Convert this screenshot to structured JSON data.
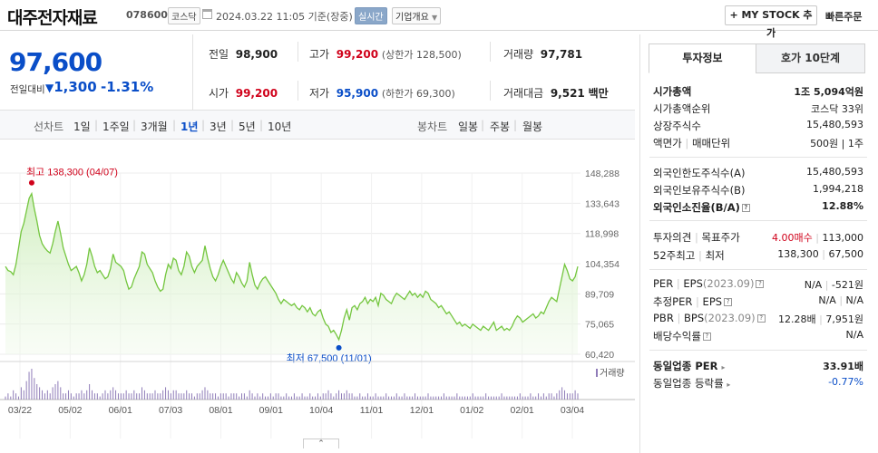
{
  "header": {
    "company_name": "대주전자재료",
    "code": "078600",
    "market": "코스닥",
    "datetime": "2024.03.22 11:05 기준(장중)",
    "realtime_badge": "실시간",
    "overview_dropdown": "기업개요",
    "my_stock_button": "+ MY STOCK 추가",
    "fast_order": "빠른주문"
  },
  "price": {
    "current": "97,600",
    "prev_label": "전일대비",
    "change": "1,300",
    "change_pct": "-1.31%",
    "direction": "down"
  },
  "summary": {
    "prev_close_label": "전일",
    "prev_close": "98,900",
    "high_label": "고가",
    "high": "99,200",
    "upper_limit": "(상한가 128,500)",
    "volume_label": "거래량",
    "volume": "97,781",
    "open_label": "시가",
    "open": "99,200",
    "low_label": "저가",
    "low": "95,900",
    "lower_limit": "(하한가 69,300)",
    "amount_label": "거래대금",
    "amount": "9,521",
    "amount_unit": "백만"
  },
  "period_bar": {
    "line_label": "선차트",
    "periods": [
      "1일",
      "1주일",
      "3개월",
      "1년",
      "3년",
      "5년",
      "10년"
    ],
    "selected": "1년",
    "candle_label": "봉차트",
    "candles": [
      "일봉",
      "주봉",
      "월봉"
    ]
  },
  "chart_data": {
    "type": "area",
    "y_ticks": [
      "148,288",
      "133,643",
      "118,998",
      "104,354",
      "89,709",
      "75,065",
      "60,420"
    ],
    "ylim": [
      60420,
      148288
    ],
    "x_ticks": [
      "03/22",
      "05/02",
      "06/01",
      "07/03",
      "08/01",
      "09/01",
      "10/04",
      "11/01",
      "12/01",
      "01/02",
      "02/01",
      "03/04"
    ],
    "high_annotation": "최고 138,300 (04/07)",
    "low_annotation": "최저 67,500 (11/01)",
    "volume_label": "거래량",
    "price_series": [
      103000,
      101000,
      100500,
      99000,
      104000,
      112000,
      120000,
      124000,
      130000,
      136000,
      138300,
      131000,
      125000,
      118000,
      114000,
      112000,
      110500,
      109500,
      114000,
      120000,
      125000,
      119000,
      112000,
      108000,
      104000,
      101000,
      102000,
      103000,
      100000,
      96000,
      99000,
      104000,
      112000,
      108000,
      103000,
      100000,
      101000,
      99000,
      97000,
      98000,
      102000,
      109000,
      105000,
      104000,
      103000,
      101000,
      96000,
      92000,
      93000,
      97000,
      100000,
      103000,
      110000,
      109000,
      104000,
      102000,
      100000,
      96000,
      93000,
      91000,
      92000,
      99000,
      104000,
      102000,
      107000,
      106000,
      101000,
      99000,
      103000,
      110000,
      108000,
      103000,
      100000,
      103000,
      104500,
      106000,
      113000,
      107000,
      102000,
      98000,
      96000,
      99000,
      103000,
      106000,
      103000,
      100000,
      97000,
      95000,
      100000,
      98000,
      95000,
      93000,
      96000,
      105000,
      99000,
      94000,
      92000,
      95000,
      97000,
      98000,
      96000,
      94000,
      92000,
      90000,
      87000,
      85000,
      87000,
      86000,
      85000,
      84000,
      85000,
      83000,
      82000,
      84000,
      83000,
      81000,
      83000,
      80000,
      79000,
      81000,
      82000,
      78000,
      75000,
      74000,
      71000,
      72000,
      70000,
      67500,
      72000,
      78000,
      82000,
      77000,
      83000,
      84000,
      82000,
      85000,
      86000,
      88000,
      85000,
      87000,
      86000,
      88000,
      84000,
      90000,
      89000,
      87000,
      86000,
      85000,
      88000,
      90000,
      89000,
      88000,
      87000,
      89000,
      91000,
      89000,
      90000,
      88000,
      89500,
      88000,
      91000,
      90000,
      87000,
      86000,
      85000,
      83000,
      84000,
      82000,
      80000,
      81000,
      79000,
      77000,
      75000,
      76000,
      74000,
      75000,
      74000,
      73000,
      75000,
      74000,
      73000,
      72000,
      74000,
      73000,
      72000,
      74000,
      76000,
      72000,
      73000,
      74000,
      72000,
      73000,
      72000,
      74000,
      77000,
      79000,
      78000,
      76000,
      77000,
      78000,
      79000,
      80000,
      78000,
      79000,
      81000,
      80000,
      83000,
      86000,
      88000,
      87000,
      86000,
      92000,
      98000,
      104000,
      101000,
      97000,
      96000,
      98000,
      103000
    ],
    "volume_series": [
      1,
      2,
      1,
      3,
      2,
      1,
      4,
      3,
      6,
      9,
      10,
      7,
      5,
      4,
      3,
      2,
      3,
      2,
      4,
      5,
      6,
      4,
      2,
      2,
      3,
      2,
      1,
      2,
      2,
      3,
      2,
      3,
      5,
      3,
      2,
      2,
      1,
      2,
      3,
      2,
      3,
      4,
      3,
      2,
      2,
      2,
      3,
      2,
      2,
      3,
      2,
      2,
      4,
      3,
      2,
      2,
      2,
      3,
      2,
      2,
      3,
      4,
      3,
      2,
      3,
      3,
      2,
      2,
      2,
      3,
      2,
      2,
      1,
      2,
      2,
      3,
      4,
      3,
      2,
      2,
      2,
      1,
      2,
      2,
      2,
      1,
      2,
      2,
      2,
      1,
      2,
      2,
      1,
      3,
      2,
      1,
      2,
      1,
      2,
      1,
      1,
      2,
      1,
      2,
      2,
      1,
      1,
      2,
      1,
      1,
      2,
      1,
      1,
      2,
      1,
      1,
      2,
      1,
      1,
      2,
      1,
      2,
      2,
      3,
      2,
      1,
      2,
      3,
      2,
      2,
      3,
      2,
      2,
      1,
      1,
      2,
      1,
      1,
      2,
      1,
      1,
      2,
      1,
      1,
      1,
      2,
      1,
      1,
      1,
      2,
      1,
      1,
      2,
      1,
      1,
      1,
      2,
      1,
      1,
      1,
      1,
      2,
      1,
      1,
      1,
      1,
      1,
      2,
      1,
      1,
      1,
      1,
      2,
      1,
      1,
      1,
      1,
      1,
      2,
      1,
      1,
      1,
      1,
      2,
      1,
      1,
      1,
      1,
      1,
      2,
      1,
      1,
      1,
      1,
      1,
      1,
      2,
      1,
      1,
      1,
      2,
      1,
      1,
      2,
      1,
      2,
      1,
      2,
      2,
      1,
      2,
      3,
      4,
      3,
      2,
      2,
      2,
      3,
      2
    ]
  },
  "right_panel": {
    "tabs": [
      "투자정보",
      "호가 10단계"
    ],
    "market_cap_label": "시가총액",
    "market_cap": "1조 5,094억원",
    "market_cap_rank_label": "시가총액순위",
    "market_cap_rank": "코스닥 33위",
    "shares_label": "상장주식수",
    "shares": "15,480,593",
    "par_label": "액면가",
    "unit_label": "매매단위",
    "par_unit": "500원 | 1주",
    "foreign_limit_label": "외국인한도주식수(A)",
    "foreign_limit": "15,480,593",
    "foreign_hold_label": "외국인보유주식수(B)",
    "foreign_hold": "1,994,218",
    "foreign_ratio_label": "외국인소진율(B/A)",
    "foreign_ratio": "12.88%",
    "opinion_label": "투자의견",
    "target_label": "목표주가",
    "opinion": "4.00매수",
    "target": "113,000",
    "w52_label": "52주최고",
    "w52_low_label": "최저",
    "w52_high": "138,300",
    "w52_low": "67,500",
    "per_label": "PER",
    "eps_label": "EPS",
    "eps_year": "(2023.09)",
    "per": "N/A",
    "eps": "-521원",
    "est_per_label": "추정PER",
    "est_eps_label": "EPS",
    "est_per": "N/A",
    "est_eps": "N/A",
    "pbr_label": "PBR",
    "bps_label": "BPS",
    "pbr": "12.28배",
    "bps": "7,951원",
    "dividend_label": "배당수익률",
    "dividend": "N/A",
    "industry_per_label": "동일업종 PER",
    "industry_per": "33.91배",
    "industry_rate_label": "동일업종 등락률",
    "industry_rate": "-0.77%"
  }
}
